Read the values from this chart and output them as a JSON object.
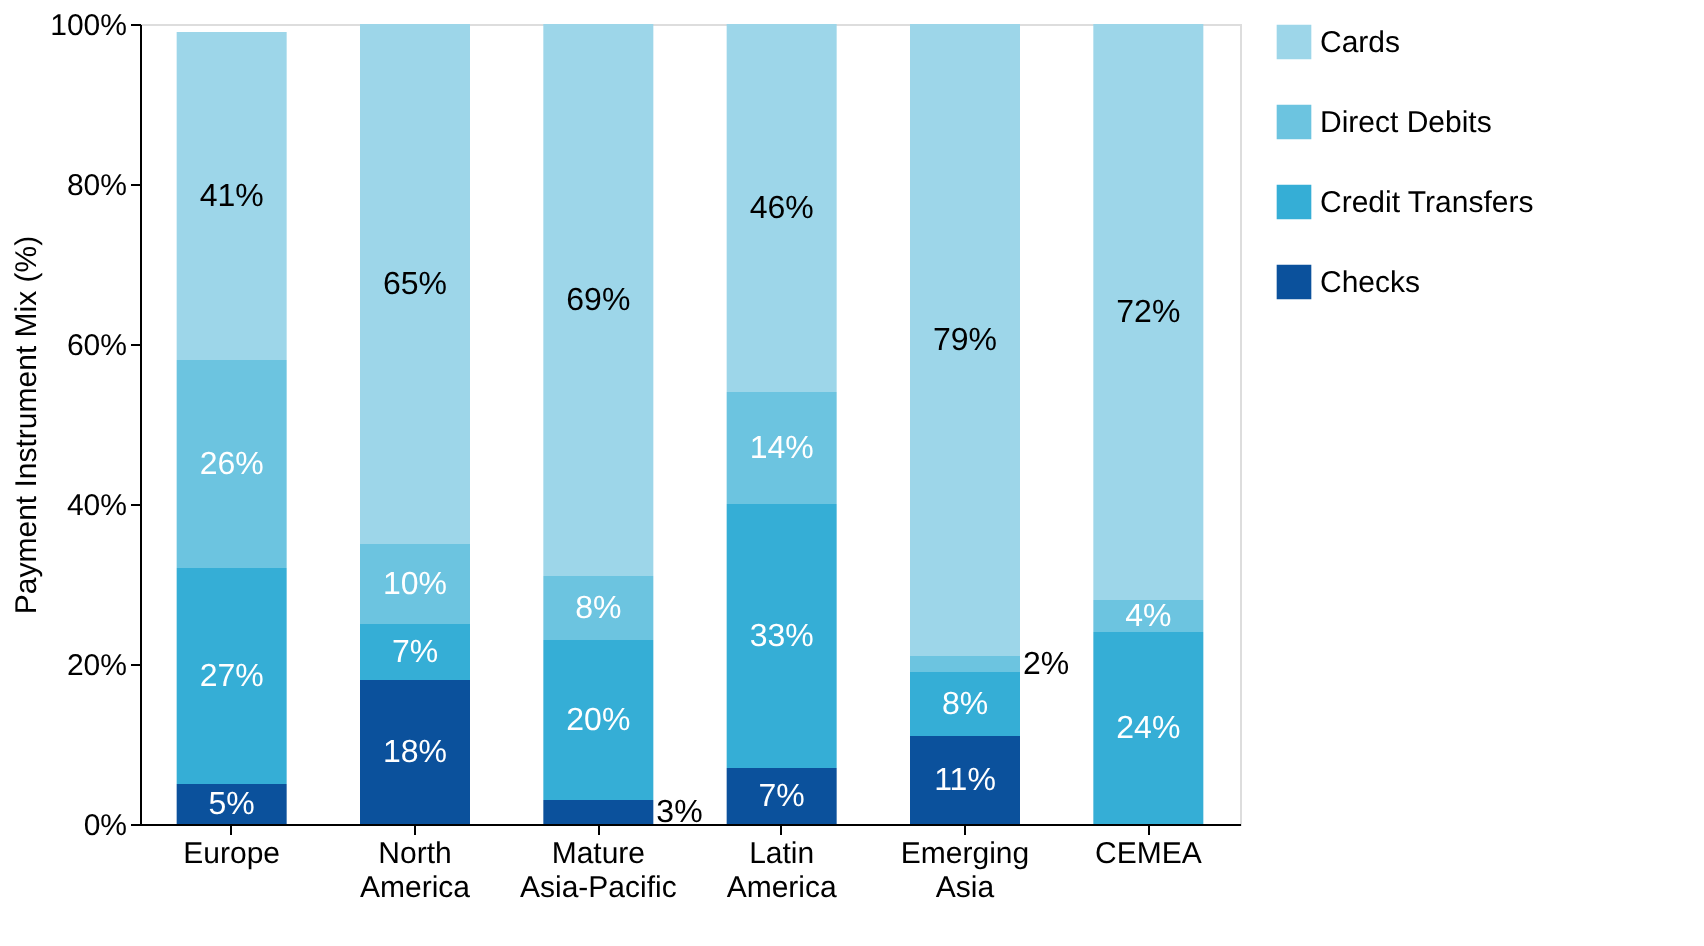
{
  "chart_data": {
    "type": "bar",
    "stacked": true,
    "ylabel": "Payment Instrument Mix (%)",
    "categories": [
      "Europe",
      "North America",
      "Mature Asia-Pacific",
      "Latin America",
      "Emerging Asia",
      "CEMEA"
    ],
    "series": [
      {
        "name": "Checks",
        "color": "#0b519c",
        "values": [
          5,
          18,
          3,
          7,
          11,
          null
        ],
        "value_labels": [
          "5%",
          "18%",
          "3%",
          "7%",
          "11%",
          null
        ]
      },
      {
        "name": "Credit Transfers",
        "color": "#35aed6",
        "values": [
          27,
          7,
          20,
          33,
          8,
          24
        ],
        "value_labels": [
          "27%",
          "7%",
          "20%",
          "33%",
          "8%",
          "24%"
        ]
      },
      {
        "name": "Direct Debits",
        "color": "#6cc4e0",
        "values": [
          26,
          10,
          8,
          14,
          2,
          4
        ],
        "value_labels": [
          "26%",
          "10%",
          "8%",
          "14%",
          "2%",
          "4%"
        ]
      },
      {
        "name": "Cards",
        "color": "#9dd6e9",
        "values": [
          41,
          65,
          69,
          46,
          79,
          72
        ],
        "value_labels": [
          "41%",
          "65%",
          "69%",
          "46%",
          "79%",
          "72%"
        ]
      }
    ],
    "ylim": [
      0,
      100
    ],
    "yticks": [
      {
        "value": 0,
        "label": "0%"
      },
      {
        "value": 20,
        "label": "20%"
      },
      {
        "value": 40,
        "label": "40%"
      },
      {
        "value": 60,
        "label": "60%"
      },
      {
        "value": 80,
        "label": "80%"
      },
      {
        "value": 100,
        "label": "100%"
      }
    ],
    "grid": false,
    "legend": "right"
  }
}
